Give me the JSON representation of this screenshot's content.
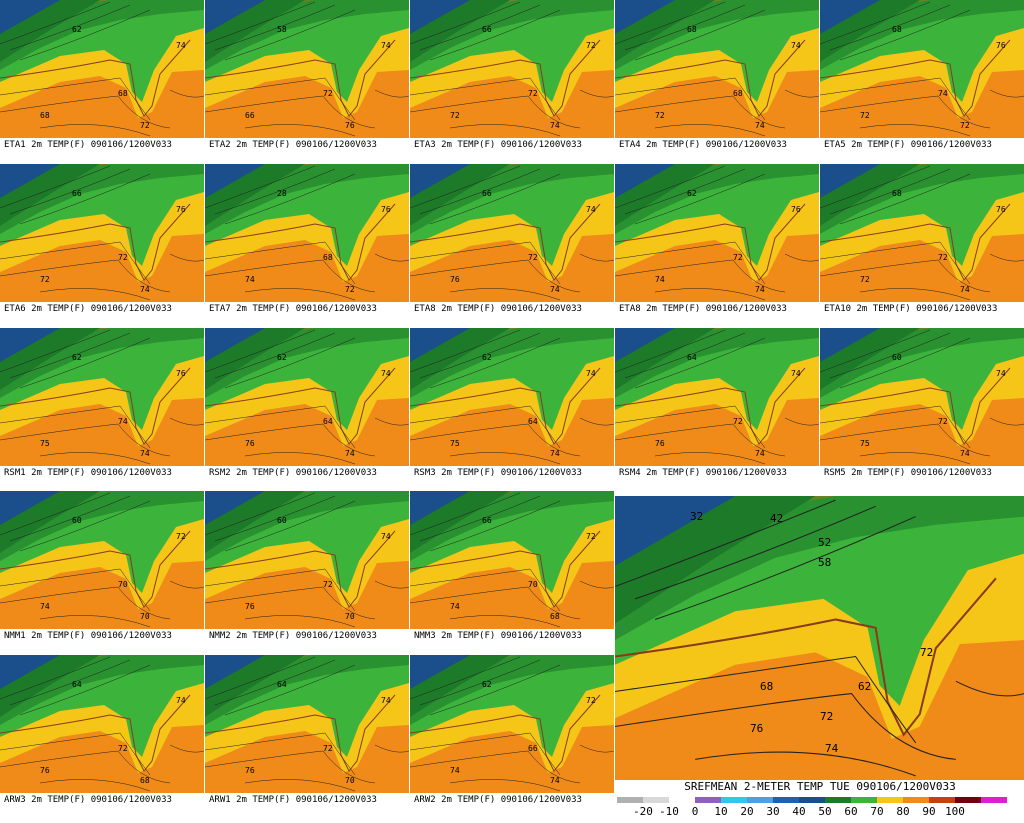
{
  "panels": [
    {
      "caption": "ETA1 2m TEMP(F) 090106/1200V033",
      "labels": [
        "62",
        "68",
        "68",
        "74",
        "72"
      ]
    },
    {
      "caption": "ETA2 2m TEMP(F) 090106/1200V033",
      "labels": [
        "58",
        "72",
        "66",
        "74",
        "76"
      ]
    },
    {
      "caption": "ETA3 2m TEMP(F) 090106/1200V033",
      "labels": [
        "66",
        "72",
        "72",
        "72",
        "74"
      ]
    },
    {
      "caption": "ETA4 2m TEMP(F) 090106/1200V033",
      "labels": [
        "68",
        "68",
        "72",
        "74",
        "74"
      ]
    },
    {
      "caption": "ETA5 2m TEMP(F) 090106/1200V033",
      "labels": [
        "68",
        "74",
        "72",
        "76",
        "72"
      ]
    },
    {
      "caption": "ETA6 2m TEMP(F) 090106/1200V033",
      "labels": [
        "66",
        "72",
        "72",
        "76",
        "74"
      ]
    },
    {
      "caption": "ETA7 2m TEMP(F) 090106/1200V033",
      "labels": [
        "28",
        "68",
        "74",
        "76",
        "72"
      ]
    },
    {
      "caption": "ETA8 2m TEMP(F) 090106/1200V033",
      "labels": [
        "66",
        "72",
        "76",
        "74",
        "74"
      ]
    },
    {
      "caption": "ETA8 2m TEMP(F) 090106/1200V033",
      "labels": [
        "62",
        "72",
        "74",
        "76",
        "74"
      ]
    },
    {
      "caption": "ETA10 2m TEMP(F) 090106/1200V033",
      "labels": [
        "68",
        "72",
        "72",
        "76",
        "74"
      ]
    },
    {
      "caption": "RSM1 2m TEMP(F) 090106/1200V033",
      "labels": [
        "62",
        "74",
        "75",
        "76",
        "74"
      ]
    },
    {
      "caption": "RSM2 2m TEMP(F) 090106/1200V033",
      "labels": [
        "62",
        "64",
        "76",
        "74",
        "74"
      ]
    },
    {
      "caption": "RSM3 2m TEMP(F) 090106/1200V033",
      "labels": [
        "62",
        "64",
        "75",
        "74",
        "74"
      ]
    },
    {
      "caption": "RSM4 2m TEMP(F) 090106/1200V033",
      "labels": [
        "64",
        "72",
        "76",
        "74",
        "74"
      ]
    },
    {
      "caption": "RSM5 2m TEMP(F) 090106/1200V033",
      "labels": [
        "60",
        "72",
        "75",
        "74",
        "74"
      ]
    },
    {
      "caption": "NMM1 2m TEMP(F) 090106/1200V033",
      "labels": [
        "60",
        "70",
        "74",
        "72",
        "70"
      ]
    },
    {
      "caption": "NMM2 2m TEMP(F) 090106/1200V033",
      "labels": [
        "60",
        "72",
        "76",
        "74",
        "70"
      ]
    },
    {
      "caption": "NMM3 2m TEMP(F) 090106/1200V033",
      "labels": [
        "66",
        "70",
        "74",
        "72",
        "68"
      ]
    },
    {
      "caption": "ARW3 2m TEMP(F) 090106/1200V033",
      "labels": [
        "64",
        "72",
        "76",
        "74",
        "68"
      ]
    },
    {
      "caption": "ARW1 2m TEMP(F) 090106/1200V033",
      "labels": [
        "64",
        "72",
        "76",
        "74",
        "70"
      ]
    },
    {
      "caption": "ARW2 2m TEMP(F) 090106/1200V033",
      "labels": [
        "62",
        "66",
        "74",
        "72",
        "74"
      ]
    }
  ],
  "mean": {
    "title": "SREFMEAN 2-METER TEMP TUE 090106/1200V033",
    "labels": [
      "32",
      "42",
      "52",
      "58",
      "72",
      "76",
      "72",
      "74",
      "68",
      "62"
    ],
    "legend": [
      "-20",
      "-10",
      "0",
      "10",
      "20",
      "30",
      "40",
      "50",
      "60",
      "70",
      "80",
      "90",
      "100"
    ]
  }
}
